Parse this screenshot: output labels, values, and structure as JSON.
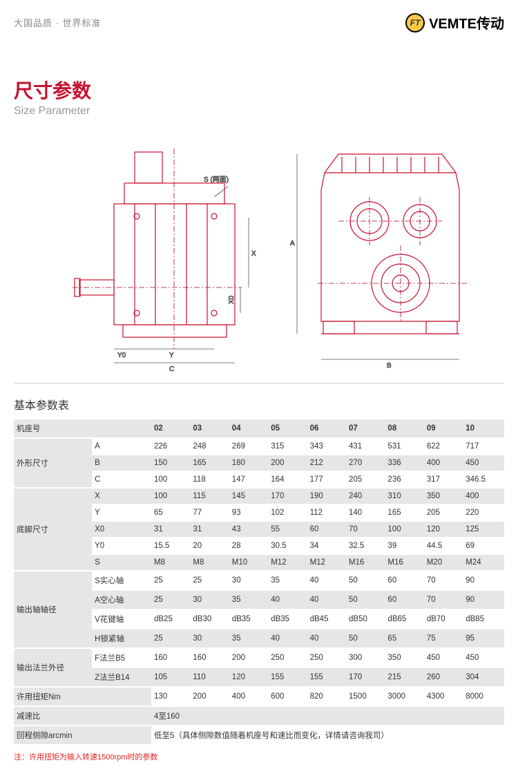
{
  "header": {
    "tagline": "大国品质 · 世界标准",
    "brand_icon_text": "FT",
    "brand_text": "VEMTE传动"
  },
  "title": {
    "cn": "尺寸参数",
    "en": "Size Parameter"
  },
  "diagram_labels": {
    "s_both": "S (两面)",
    "x": "X",
    "x0": "X0",
    "y0": "Y0",
    "y": "Y",
    "c": "C",
    "a": "A",
    "b": "B"
  },
  "table": {
    "title": "基本参数表",
    "col_header": "机座号",
    "models": [
      "02",
      "03",
      "04",
      "05",
      "06",
      "07",
      "08",
      "09",
      "10"
    ],
    "groups": [
      {
        "name": "外形尺寸",
        "rows": [
          {
            "label": "A",
            "vals": [
              "226",
              "248",
              "269",
              "315",
              "343",
              "431",
              "531",
              "622",
              "717"
            ]
          },
          {
            "label": "B",
            "vals": [
              "150",
              "165",
              "180",
              "200",
              "212",
              "270",
              "336",
              "400",
              "450"
            ]
          },
          {
            "label": "C",
            "vals": [
              "100",
              "118",
              "147",
              "164",
              "177",
              "205",
              "236",
              "317",
              "346.5"
            ]
          }
        ]
      },
      {
        "name": "底脚尺寸",
        "rows": [
          {
            "label": "X",
            "vals": [
              "100",
              "115",
              "145",
              "170",
              "190",
              "240",
              "310",
              "350",
              "400"
            ]
          },
          {
            "label": "Y",
            "vals": [
              "65",
              "77",
              "93",
              "102",
              "112",
              "140",
              "165",
              "205",
              "220"
            ]
          },
          {
            "label": "X0",
            "vals": [
              "31",
              "31",
              "43",
              "55",
              "60",
              "70",
              "100",
              "120",
              "125"
            ]
          },
          {
            "label": "Y0",
            "vals": [
              "15.5",
              "20",
              "28",
              "30.5",
              "34",
              "32.5",
              "39",
              "44.5",
              "69"
            ]
          },
          {
            "label": "S",
            "vals": [
              "M8",
              "M8",
              "M10",
              "M12",
              "M12",
              "M16",
              "M16",
              "M20",
              "M24"
            ]
          }
        ]
      },
      {
        "name": "输出轴轴径",
        "rows": [
          {
            "label": "S实心轴",
            "vals": [
              "25",
              "25",
              "30",
              "35",
              "40",
              "50",
              "60",
              "70",
              "90"
            ]
          },
          {
            "label": "A空心轴",
            "vals": [
              "25",
              "30",
              "35",
              "40",
              "40",
              "50",
              "60",
              "70",
              "90"
            ]
          },
          {
            "label": "V花键轴",
            "vals": [
              "dB25",
              "dB30",
              "dB35",
              "dB35",
              "dB45",
              "dB50",
              "dB65",
              "dB70",
              "dB85"
            ]
          },
          {
            "label": "H锁紧轴",
            "vals": [
              "25",
              "30",
              "35",
              "40",
              "40",
              "50",
              "65",
              "75",
              "95"
            ]
          }
        ]
      },
      {
        "name": "输出法兰外径",
        "rows": [
          {
            "label": "F法兰B5",
            "vals": [
              "160",
              "160",
              "200",
              "250",
              "250",
              "300",
              "350",
              "450",
              "450"
            ]
          },
          {
            "label": "Z法兰B14",
            "vals": [
              "105",
              "110",
              "120",
              "155",
              "155",
              "170",
              "215",
              "260",
              "304"
            ]
          }
        ]
      }
    ],
    "single_rows": [
      {
        "name": "许用扭矩Nm",
        "vals": [
          "130",
          "200",
          "400",
          "600",
          "820",
          "1500",
          "3000",
          "4300",
          "8000"
        ]
      },
      {
        "name": "减速比",
        "span_text": "4至160"
      },
      {
        "name": "回程侧隙arcmin",
        "span_text": "低至5（具体侧隙数值随着机座号和速比而变化，详情请咨询我司）"
      }
    ],
    "footnote": "注：许用扭矩为输入转速1500rpm时的参数"
  },
  "colors": {
    "diagram_stroke": "#c8102e",
    "diagram_center": "#b00020"
  }
}
